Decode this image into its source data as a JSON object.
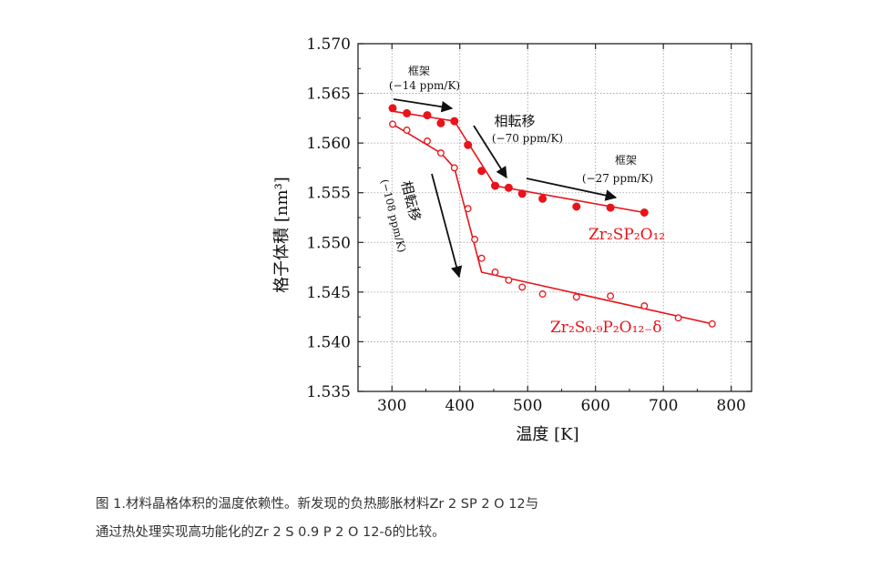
{
  "chart_data": {
    "type": "scatter",
    "xlabel": "温度 [K]",
    "ylabel": "格子体積 [nm³]",
    "xlim": [
      250,
      830
    ],
    "ylim": [
      1.535,
      1.57
    ],
    "x_ticks": [
      "300",
      "400",
      "500",
      "600",
      "700",
      "800"
    ],
    "y_ticks": [
      "1.535",
      "1.540",
      "1.545",
      "1.550",
      "1.555",
      "1.560",
      "1.565",
      "1.570"
    ],
    "grid": "dotted",
    "series": [
      {
        "name": "Zr₂SP₂O₁₂",
        "marker": "filled-circle",
        "color": "#e8141a",
        "points": [
          [
            301,
            1.5635
          ],
          [
            322,
            1.563
          ],
          [
            352,
            1.5628
          ],
          [
            372,
            1.562
          ],
          [
            392,
            1.5622
          ],
          [
            412,
            1.5598
          ],
          [
            432,
            1.5572
          ],
          [
            452,
            1.5557
          ],
          [
            472,
            1.5555
          ],
          [
            492,
            1.5549
          ],
          [
            522,
            1.5544
          ],
          [
            572,
            1.5536
          ],
          [
            622,
            1.5535
          ],
          [
            672,
            1.553
          ]
        ],
        "fit": [
          [
            301,
            1.5632
          ],
          [
            392,
            1.5622
          ],
          [
            452,
            1.5557
          ],
          [
            672,
            1.553
          ]
        ]
      },
      {
        "name": "Zr₂S₀.₉P₂O₁₂₋δ",
        "marker": "open-circle",
        "color": "#e8141a",
        "points": [
          [
            301,
            1.5619
          ],
          [
            322,
            1.5613
          ],
          [
            352,
            1.5602
          ],
          [
            372,
            1.559
          ],
          [
            392,
            1.5575
          ],
          [
            412,
            1.5534
          ],
          [
            422,
            1.5503
          ],
          [
            432,
            1.5484
          ],
          [
            452,
            1.547
          ],
          [
            472,
            1.5462
          ],
          [
            492,
            1.5455
          ],
          [
            522,
            1.5448
          ],
          [
            572,
            1.5445
          ],
          [
            622,
            1.5446
          ],
          [
            672,
            1.5436
          ],
          [
            722,
            1.5424
          ],
          [
            772,
            1.5418
          ]
        ],
        "fit": [
          [
            301,
            1.5619
          ],
          [
            372,
            1.559
          ],
          [
            392,
            1.5575
          ],
          [
            432,
            1.547
          ],
          [
            772,
            1.5418
          ]
        ]
      }
    ],
    "annotations": {
      "framework1_label": "框架",
      "framework1_rate": "(−14 ppm/K)",
      "phase1_label": "相転移",
      "phase1_rate": "(−70 ppm/K)",
      "framework2_label": "框架",
      "framework2_rate": "(−27 ppm/K)",
      "phase2_label": "相転移",
      "phase2_rate": "(−108 ppm/K)"
    }
  },
  "caption": {
    "line1": "图 1.材料晶格体积的温度依赖性。新发现的负热膨胀材料Zr 2 SP 2 O 12与",
    "line2": "通过热处理实现高功能化的Zr 2 S 0.9 P 2 O 12-δ的比较。"
  }
}
